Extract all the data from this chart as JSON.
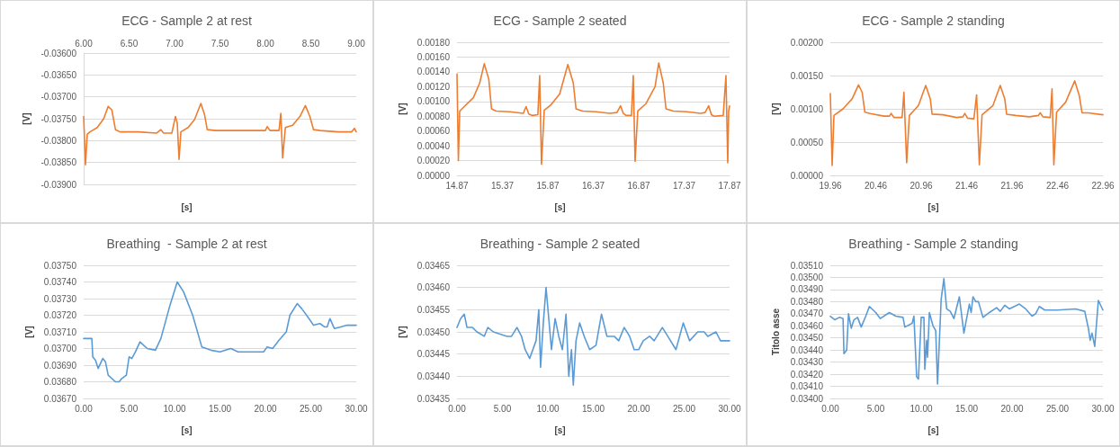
{
  "chart_data": [
    {
      "type": "line",
      "title": "ECG - Sample 2 at rest",
      "xlabel": "[s]",
      "ylabel": "[V]",
      "grid": "y",
      "xlim": [
        6,
        9
      ],
      "xticks": [
        {
          "value": 6,
          "label": "6.00"
        },
        {
          "value": 6.5,
          "label": "6.50"
        },
        {
          "value": 7,
          "label": "7.00"
        },
        {
          "value": 7.5,
          "label": "7.50"
        },
        {
          "value": 8,
          "label": "8.00"
        },
        {
          "value": 8.5,
          "label": "8.50"
        },
        {
          "value": 9,
          "label": "9.00"
        }
      ],
      "ylim": [
        -0.039,
        -0.036
      ],
      "yticks": [
        {
          "value": -0.039,
          "label": "-0.03900"
        },
        {
          "value": -0.0385,
          "label": "-0.03850"
        },
        {
          "value": -0.038,
          "label": "-0.03800"
        },
        {
          "value": -0.0375,
          "label": "-0.03750"
        },
        {
          "value": -0.037,
          "label": "-0.03700"
        },
        {
          "value": -0.0365,
          "label": "-0.03650"
        },
        {
          "value": -0.036,
          "label": "-0.03600"
        }
      ],
      "x": [
        6.0,
        6.02,
        6.04,
        6.07,
        6.15,
        6.22,
        6.27,
        6.31,
        6.35,
        6.4,
        6.6,
        6.8,
        6.85,
        6.88,
        6.97,
        7.01,
        7.03,
        7.05,
        7.07,
        7.15,
        7.22,
        7.29,
        7.33,
        7.36,
        7.45,
        8.0,
        8.02,
        8.05,
        8.15,
        8.17,
        8.19,
        8.22,
        8.3,
        8.38,
        8.44,
        8.49,
        8.53,
        8.6,
        8.8,
        8.95,
        8.98,
        9.0
      ],
      "series": [
        {
          "color": "#ed7d31",
          "values": [
            -0.03745,
            -0.03855,
            -0.03785,
            -0.0378,
            -0.0377,
            -0.0375,
            -0.03722,
            -0.0373,
            -0.03775,
            -0.0378,
            -0.0378,
            -0.03783,
            -0.03775,
            -0.03783,
            -0.03783,
            -0.03745,
            -0.0376,
            -0.03843,
            -0.0378,
            -0.0377,
            -0.03752,
            -0.03715,
            -0.0374,
            -0.03775,
            -0.03777,
            -0.03777,
            -0.03768,
            -0.03777,
            -0.03777,
            -0.03738,
            -0.0384,
            -0.0377,
            -0.03765,
            -0.03745,
            -0.0372,
            -0.03745,
            -0.03775,
            -0.03777,
            -0.0378,
            -0.0378,
            -0.03772,
            -0.0378
          ]
        }
      ]
    },
    {
      "type": "line",
      "title": "ECG - Sample 2 seated",
      "xlabel": "[s]",
      "ylabel": "[V]",
      "grid": "y",
      "xlim": [
        14.87,
        17.87
      ],
      "xticks": [
        {
          "value": 14.87,
          "label": "14.87"
        },
        {
          "value": 15.37,
          "label": "15.37"
        },
        {
          "value": 15.87,
          "label": "15.87"
        },
        {
          "value": 16.37,
          "label": "16.37"
        },
        {
          "value": 16.87,
          "label": "16.87"
        },
        {
          "value": 17.37,
          "label": "17.37"
        },
        {
          "value": 17.87,
          "label": "17.87"
        }
      ],
      "ylim": [
        0,
        0.0018
      ],
      "yticks": [
        {
          "value": 0,
          "label": "0.00000"
        },
        {
          "value": 0.0002,
          "label": "0.00020"
        },
        {
          "value": 0.0004,
          "label": "0.00040"
        },
        {
          "value": 0.0006,
          "label": "0.00060"
        },
        {
          "value": 0.0008,
          "label": "0.00080"
        },
        {
          "value": 0.001,
          "label": "0.00100"
        },
        {
          "value": 0.0012,
          "label": "0.00120"
        },
        {
          "value": 0.0014,
          "label": "0.00140"
        },
        {
          "value": 0.0016,
          "label": "0.00160"
        },
        {
          "value": 0.0018,
          "label": "0.00180"
        }
      ],
      "x": [
        14.87,
        14.885,
        14.9,
        14.95,
        15.05,
        15.12,
        15.17,
        15.22,
        15.25,
        15.3,
        15.45,
        15.6,
        15.63,
        15.66,
        15.7,
        15.76,
        15.78,
        15.8,
        15.83,
        15.9,
        16.0,
        16.09,
        16.15,
        16.18,
        16.25,
        16.4,
        16.55,
        16.63,
        16.67,
        16.7,
        16.73,
        16.79,
        16.81,
        16.83,
        16.86,
        16.95,
        17.05,
        17.09,
        17.14,
        17.17,
        17.25,
        17.4,
        17.55,
        17.6,
        17.64,
        17.67,
        17.7,
        17.8,
        17.83,
        17.85,
        17.86,
        17.87
      ],
      "series": [
        {
          "color": "#ed7d31",
          "values": [
            0.00137,
            0.0002,
            0.00087,
            0.00093,
            0.00105,
            0.00125,
            0.00151,
            0.0013,
            0.0009,
            0.00087,
            0.00086,
            0.00084,
            0.00093,
            0.00083,
            0.00081,
            0.00082,
            0.00135,
            0.00015,
            0.00088,
            0.00095,
            0.0011,
            0.0015,
            0.00125,
            0.0009,
            0.00087,
            0.00086,
            0.00084,
            0.00085,
            0.00094,
            0.00084,
            0.00081,
            0.00081,
            0.00135,
            0.00019,
            0.00087,
            0.00097,
            0.0012,
            0.00152,
            0.00125,
            0.0009,
            0.00087,
            0.00086,
            0.00084,
            0.00085,
            0.00094,
            0.00082,
            0.0008,
            0.00081,
            0.00135,
            0.00017,
            0.00087,
            0.00094
          ]
        }
      ]
    },
    {
      "type": "line",
      "title": "ECG - Sample 2 standing",
      "xlabel": "[s]",
      "ylabel": "[V]",
      "grid": "y",
      "xlim": [
        19.96,
        22.96
      ],
      "xticks": [
        {
          "value": 19.96,
          "label": "19.96"
        },
        {
          "value": 20.46,
          "label": "20.46"
        },
        {
          "value": 20.96,
          "label": "20.96"
        },
        {
          "value": 21.46,
          "label": "21.46"
        },
        {
          "value": 21.96,
          "label": "21.96"
        },
        {
          "value": 22.46,
          "label": "22.46"
        },
        {
          "value": 22.96,
          "label": "22.96"
        }
      ],
      "ylim": [
        0,
        0.002
      ],
      "yticks": [
        {
          "value": 0,
          "label": "0.00000"
        },
        {
          "value": 0.0005,
          "label": "0.00050"
        },
        {
          "value": 0.001,
          "label": "0.00100"
        },
        {
          "value": 0.0015,
          "label": "0.00150"
        },
        {
          "value": 0.002,
          "label": "0.00200"
        }
      ],
      "x": [
        19.96,
        19.98,
        20.0,
        20.1,
        20.2,
        20.27,
        20.31,
        20.34,
        20.4,
        20.55,
        20.61,
        20.63,
        20.66,
        20.75,
        20.77,
        20.8,
        20.83,
        20.93,
        21.01,
        21.06,
        21.08,
        21.2,
        21.35,
        21.42,
        21.44,
        21.47,
        21.54,
        21.57,
        21.6,
        21.63,
        21.75,
        21.83,
        21.88,
        21.9,
        22.0,
        22.15,
        22.25,
        22.27,
        22.3,
        22.38,
        22.4,
        22.42,
        22.45,
        22.55,
        22.65,
        22.7,
        22.73,
        22.8,
        22.96
      ],
      "series": [
        {
          "color": "#ed7d31",
          "values": [
            0.00123,
            0.00015,
            0.0009,
            0.001,
            0.00115,
            0.00136,
            0.00125,
            0.00095,
            0.00093,
            0.00089,
            0.00089,
            0.00093,
            0.00087,
            0.00087,
            0.00125,
            0.00019,
            0.0009,
            0.00105,
            0.00135,
            0.00115,
            0.00092,
            0.00091,
            0.00087,
            0.00088,
            0.00093,
            0.00086,
            0.00085,
            0.00121,
            0.00016,
            0.00091,
            0.00105,
            0.00135,
            0.00115,
            0.00092,
            0.0009,
            0.00088,
            0.0009,
            0.00094,
            0.00088,
            0.00087,
            0.0013,
            0.00016,
            0.00095,
            0.0011,
            0.00142,
            0.0012,
            0.00094,
            0.00094,
            0.00091
          ]
        }
      ]
    },
    {
      "type": "line",
      "title": "Breathing  - Sample 2 at rest",
      "xlabel": "[s]",
      "ylabel": "[V]",
      "grid": "y",
      "xlim": [
        0,
        30
      ],
      "xticks": [
        {
          "value": 0,
          "label": "0.00"
        },
        {
          "value": 5,
          "label": "5.00"
        },
        {
          "value": 10,
          "label": "10.00"
        },
        {
          "value": 15,
          "label": "15.00"
        },
        {
          "value": 20,
          "label": "20.00"
        },
        {
          "value": 25,
          "label": "25.00"
        },
        {
          "value": 30,
          "label": "30.00"
        }
      ],
      "ylim": [
        0.0367,
        0.0375
      ],
      "yticks": [
        {
          "value": 0.0367,
          "label": "0.03670"
        },
        {
          "value": 0.0368,
          "label": "0.03680"
        },
        {
          "value": 0.0369,
          "label": "0.03690"
        },
        {
          "value": 0.037,
          "label": "0.03700"
        },
        {
          "value": 0.0371,
          "label": "0.03710"
        },
        {
          "value": 0.0372,
          "label": "0.03720"
        },
        {
          "value": 0.0373,
          "label": "0.03730"
        },
        {
          "value": 0.0374,
          "label": "0.03740"
        },
        {
          "value": 0.0375,
          "label": "0.03750"
        }
      ],
      "x": [
        0,
        0.9,
        1.0,
        1.3,
        1.6,
        2.1,
        2.4,
        2.7,
        3.5,
        3.9,
        4.2,
        4.7,
        5.0,
        5.3,
        5.7,
        6.2,
        6.6,
        7.0,
        7.9,
        8.5,
        9.5,
        10.3,
        11.0,
        12.0,
        13.0,
        14.0,
        15.0,
        16.2,
        17.0,
        18.0,
        19.8,
        20.2,
        20.8,
        21.5,
        22.3,
        22.7,
        23.5,
        24.0,
        24.8,
        25.3,
        26.0,
        26.5,
        26.8,
        27.1,
        27.6,
        28.3,
        29.0,
        30.0
      ],
      "series": [
        {
          "color": "#5b9bd5",
          "values": [
            0.03706,
            0.03706,
            0.03695,
            0.03693,
            0.03688,
            0.03694,
            0.03692,
            0.03684,
            0.0368,
            0.0368,
            0.03682,
            0.03684,
            0.03695,
            0.03694,
            0.03698,
            0.03704,
            0.03702,
            0.037,
            0.03699,
            0.03706,
            0.03726,
            0.0374,
            0.03734,
            0.0372,
            0.03701,
            0.03699,
            0.03698,
            0.037,
            0.03698,
            0.03698,
            0.03698,
            0.03701,
            0.037,
            0.03705,
            0.0371,
            0.0372,
            0.03727,
            0.03724,
            0.03718,
            0.03714,
            0.03715,
            0.03713,
            0.03713,
            0.03718,
            0.03712,
            0.03713,
            0.03714,
            0.03714
          ]
        }
      ]
    },
    {
      "type": "line",
      "title": "Breathing - Sample 2 seated",
      "xlabel": "[s]",
      "ylabel": "[V]",
      "grid": "y",
      "xlim": [
        0,
        30
      ],
      "xticks": [
        {
          "value": 0,
          "label": "0.00"
        },
        {
          "value": 5,
          "label": "5.00"
        },
        {
          "value": 10,
          "label": "10.00"
        },
        {
          "value": 15,
          "label": "15.00"
        },
        {
          "value": 20,
          "label": "20.00"
        },
        {
          "value": 25,
          "label": "25.00"
        },
        {
          "value": 30,
          "label": "30.00"
        }
      ],
      "ylim": [
        0.03435,
        0.03465
      ],
      "yticks": [
        {
          "value": 0.03435,
          "label": "0.03435"
        },
        {
          "value": 0.0344,
          "label": "0.03440"
        },
        {
          "value": 0.03445,
          "label": "0.03445"
        },
        {
          "value": 0.0345,
          "label": "0.03450"
        },
        {
          "value": 0.03455,
          "label": "0.03455"
        },
        {
          "value": 0.0346,
          "label": "0.03460"
        },
        {
          "value": 0.03465,
          "label": "0.03465"
        }
      ],
      "x": [
        0,
        0.4,
        0.8,
        1.1,
        1.7,
        2.2,
        3.0,
        3.4,
        4.0,
        5.5,
        6.0,
        6.6,
        7.1,
        7.5,
        8.0,
        8.7,
        9.0,
        9.2,
        9.5,
        9.8,
        10.1,
        10.4,
        10.8,
        11.2,
        11.6,
        12.0,
        12.3,
        12.6,
        12.8,
        13.1,
        13.5,
        14.0,
        14.6,
        15.3,
        15.9,
        16.5,
        17.3,
        17.8,
        18.4,
        19.0,
        19.5,
        20.0,
        20.5,
        21.2,
        21.7,
        22.6,
        23.2,
        24.1,
        24.9,
        25.6,
        26.5,
        27.2,
        27.6,
        28.5,
        29.0,
        30.0
      ],
      "series": [
        {
          "color": "#5b9bd5",
          "values": [
            0.03451,
            0.03453,
            0.03454,
            0.03451,
            0.03451,
            0.0345,
            0.03449,
            0.03451,
            0.0345,
            0.03449,
            0.03449,
            0.03451,
            0.03449,
            0.03446,
            0.03444,
            0.03448,
            0.03455,
            0.03442,
            0.03452,
            0.0346,
            0.03453,
            0.03446,
            0.03453,
            0.03449,
            0.03446,
            0.03454,
            0.0344,
            0.03446,
            0.03438,
            0.03448,
            0.03452,
            0.03449,
            0.03446,
            0.03447,
            0.03454,
            0.03449,
            0.03449,
            0.03448,
            0.03451,
            0.03449,
            0.03446,
            0.03446,
            0.03448,
            0.03449,
            0.03448,
            0.03451,
            0.03449,
            0.03446,
            0.03452,
            0.03448,
            0.0345,
            0.0345,
            0.03449,
            0.0345,
            0.03448,
            0.03448
          ]
        }
      ]
    },
    {
      "type": "line",
      "title": "Breathing - Sample 2 standing",
      "xlabel": "[s]",
      "ylabel": "Titolo asse",
      "grid": "y",
      "xlim": [
        0,
        30
      ],
      "xticks": [
        {
          "value": 0,
          "label": "0.00"
        },
        {
          "value": 5,
          "label": "5.00"
        },
        {
          "value": 10,
          "label": "10.00"
        },
        {
          "value": 15,
          "label": "15.00"
        },
        {
          "value": 20,
          "label": "20.00"
        },
        {
          "value": 25,
          "label": "25.00"
        },
        {
          "value": 30,
          "label": "30.00"
        }
      ],
      "ylim": [
        0.034,
        0.0351
      ],
      "yticks": [
        {
          "value": 0.034,
          "label": "0.03400"
        },
        {
          "value": 0.0341,
          "label": "0.03410"
        },
        {
          "value": 0.0342,
          "label": "0.03420"
        },
        {
          "value": 0.0343,
          "label": "0.03430"
        },
        {
          "value": 0.0344,
          "label": "0.03440"
        },
        {
          "value": 0.0345,
          "label": "0.03450"
        },
        {
          "value": 0.0346,
          "label": "0.03460"
        },
        {
          "value": 0.0347,
          "label": "0.03470"
        },
        {
          "value": 0.0348,
          "label": "0.03480"
        },
        {
          "value": 0.0349,
          "label": "0.03490"
        },
        {
          "value": 0.035,
          "label": "0.03500"
        },
        {
          "value": 0.0351,
          "label": "0.03510"
        }
      ],
      "x": [
        0,
        0.5,
        1.0,
        1.4,
        1.5,
        1.8,
        2.0,
        2.3,
        2.6,
        3.0,
        3.4,
        3.9,
        4.3,
        5.0,
        5.5,
        6.5,
        7.2,
        8.0,
        8.2,
        9.0,
        9.2,
        9.5,
        9.7,
        10.0,
        10.3,
        10.4,
        10.6,
        10.7,
        10.9,
        11.3,
        11.6,
        11.8,
        12.2,
        12.5,
        12.8,
        13.2,
        13.6,
        14.2,
        14.7,
        15.3,
        15.5,
        15.7,
        16.0,
        16.3,
        16.8,
        17.5,
        18.3,
        18.7,
        19.2,
        19.7,
        20.8,
        21.5,
        22.2,
        22.6,
        23.0,
        23.6,
        25.0,
        27.0,
        28.0,
        28.4,
        28.6,
        28.8,
        29.1,
        29.5,
        30.0
      ],
      "series": [
        {
          "color": "#5b9bd5",
          "values": [
            0.03468,
            0.03465,
            0.03467,
            0.03466,
            0.03437,
            0.0344,
            0.0347,
            0.03458,
            0.03465,
            0.03467,
            0.03459,
            0.03468,
            0.03476,
            0.03471,
            0.03466,
            0.03471,
            0.03468,
            0.03467,
            0.03459,
            0.03462,
            0.03468,
            0.03418,
            0.03416,
            0.03467,
            0.03467,
            0.03424,
            0.03448,
            0.03434,
            0.03471,
            0.0346,
            0.03456,
            0.03412,
            0.03482,
            0.03499,
            0.03474,
            0.03472,
            0.03466,
            0.03484,
            0.03454,
            0.03478,
            0.03471,
            0.03484,
            0.0348,
            0.0348,
            0.03467,
            0.03471,
            0.03475,
            0.03472,
            0.03477,
            0.03474,
            0.03478,
            0.03474,
            0.03468,
            0.0347,
            0.03476,
            0.03473,
            0.03473,
            0.03474,
            0.03472,
            0.03458,
            0.03448,
            0.03454,
            0.03443,
            0.03481,
            0.03473
          ]
        }
      ]
    }
  ]
}
